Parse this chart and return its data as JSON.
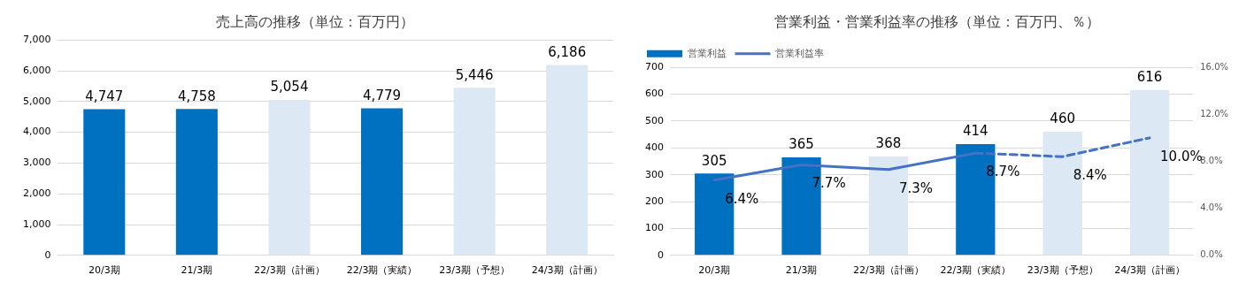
{
  "chart_data": [
    {
      "type": "bar",
      "title": "売上高の推移（単位：百万円）",
      "categories": [
        "20/3期",
        "21/3期",
        "22/3期（計画）",
        "22/3期（実績）",
        "23/3期（予想）",
        "24/3期（計画）"
      ],
      "values": [
        4747,
        4758,
        5054,
        4779,
        5446,
        6186
      ],
      "colors": [
        "#0070c0",
        "#0070c0",
        "#dde8f5",
        "#0070c0",
        "#dde8f5",
        "#dde8f5"
      ],
      "value_labels": [
        "4,747",
        "4,758",
        "5,054",
        "4,779",
        "5,446",
        "6,186"
      ],
      "ylim": [
        0,
        7000
      ],
      "yticks": [
        {
          "value": 0,
          "label": "0"
        },
        {
          "value": 1000,
          "label": "1,000"
        },
        {
          "value": 2000,
          "label": "2,000"
        },
        {
          "value": 3000,
          "label": "3,000"
        },
        {
          "value": 4000,
          "label": "4,000"
        },
        {
          "value": 5000,
          "label": "5,000"
        },
        {
          "value": 6000,
          "label": "6,000"
        },
        {
          "value": 7000,
          "label": "7,000"
        }
      ],
      "grid": "y",
      "legend": false
    },
    {
      "type": "bar",
      "title": "営業利益・営業利益率の推移（単位：百万円、％）",
      "categories": [
        "20/3期",
        "21/3期",
        "22/3期（計画）",
        "22/3期（実績）",
        "23/3期（予想）",
        "24/3期（計画）"
      ],
      "series": [
        {
          "name": "営業利益",
          "type": "bar",
          "colors": [
            "#0070c0",
            "#0070c0",
            "#dde8f5",
            "#0070c0",
            "#dde8f5",
            "#dde8f5"
          ],
          "values": [
            305,
            365,
            368,
            414,
            460,
            616
          ],
          "value_labels": [
            "305",
            "365",
            "368",
            "414",
            "460",
            "616"
          ]
        },
        {
          "name": "営業利益率",
          "type": "line",
          "color": "#4472c4",
          "axis": "y2",
          "line_style": "solid",
          "values": [
            6.4,
            7.7,
            7.3,
            8.7,
            null,
            null
          ],
          "value_labels": [
            "6.4%",
            "7.7%",
            "7.3%",
            "8.7%",
            null,
            null
          ]
        },
        {
          "type": "line",
          "color": "#4472c4",
          "axis": "y2",
          "line_style": "dashed",
          "values": [
            null,
            null,
            null,
            8.7,
            8.4,
            10.0
          ],
          "value_labels": [
            null,
            null,
            null,
            null,
            "8.4%",
            "10.0%"
          ]
        }
      ],
      "ylim": [
        0,
        700
      ],
      "yticks": [
        0,
        100,
        200,
        300,
        400,
        500,
        600,
        700
      ],
      "y2lim": [
        0,
        16
      ],
      "y2ticks": [
        {
          "value": 0,
          "label": "0.0%"
        },
        {
          "value": 4,
          "label": "4.0%"
        },
        {
          "value": 8,
          "label": "8.0%"
        },
        {
          "value": 12,
          "label": "12.0%"
        },
        {
          "value": 16,
          "label": "16.0%"
        }
      ],
      "grid": "y",
      "legend": "top left"
    }
  ]
}
